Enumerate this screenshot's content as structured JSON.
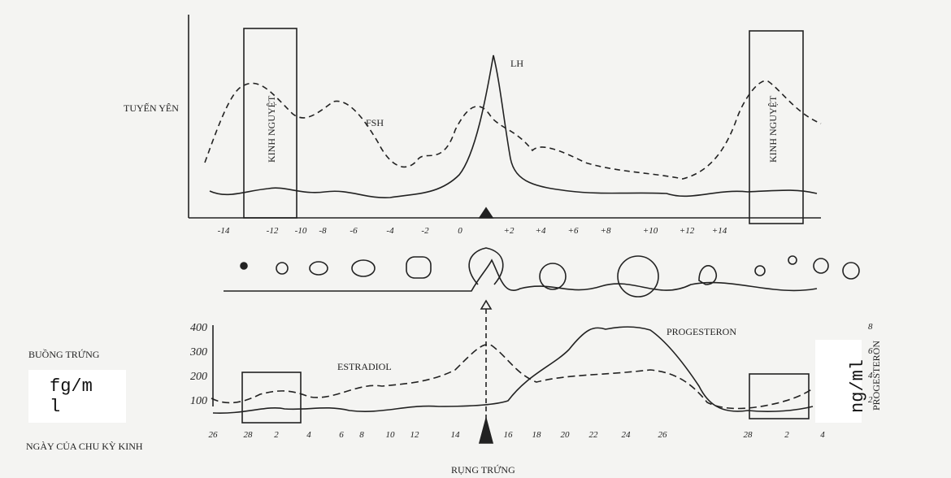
{
  "labels": {
    "pituitary": "TUYẾN YÊN",
    "fsh": "FSH",
    "lh": "LH",
    "menses_left": "KINH NGUYỆT",
    "menses_right": "KINH NGUYỆT",
    "ovary": "BUỒNG TRỨNG",
    "estradiol": "ESTRADIOL",
    "progesterone": "PROGESTERON",
    "progesterone_axis": "PROGESTERON",
    "cycle_day": "NGÀY CỦA CHU KỲ KINH",
    "ovulation": "RỤNG TRỨNG",
    "unit_left": "fg/ml",
    "unit_right": "ng/ml"
  },
  "top_ticks": [
    "-14",
    "-12",
    "-10",
    "-8",
    "-6",
    "-4",
    "-2",
    "0",
    "+2",
    "+4",
    "+6",
    "+8",
    "+10",
    "+12",
    "+14"
  ],
  "left_ticks": [
    "400",
    "300",
    "200",
    "100"
  ],
  "right_ticks": [
    "8",
    "6",
    "4",
    "2"
  ],
  "bottom_ticks": [
    "26",
    "28",
    "2",
    "4",
    "6",
    "8",
    "10",
    "12",
    "14",
    "16",
    "18",
    "20",
    "22",
    "24",
    "26",
    "28",
    "2",
    "4"
  ]
}
